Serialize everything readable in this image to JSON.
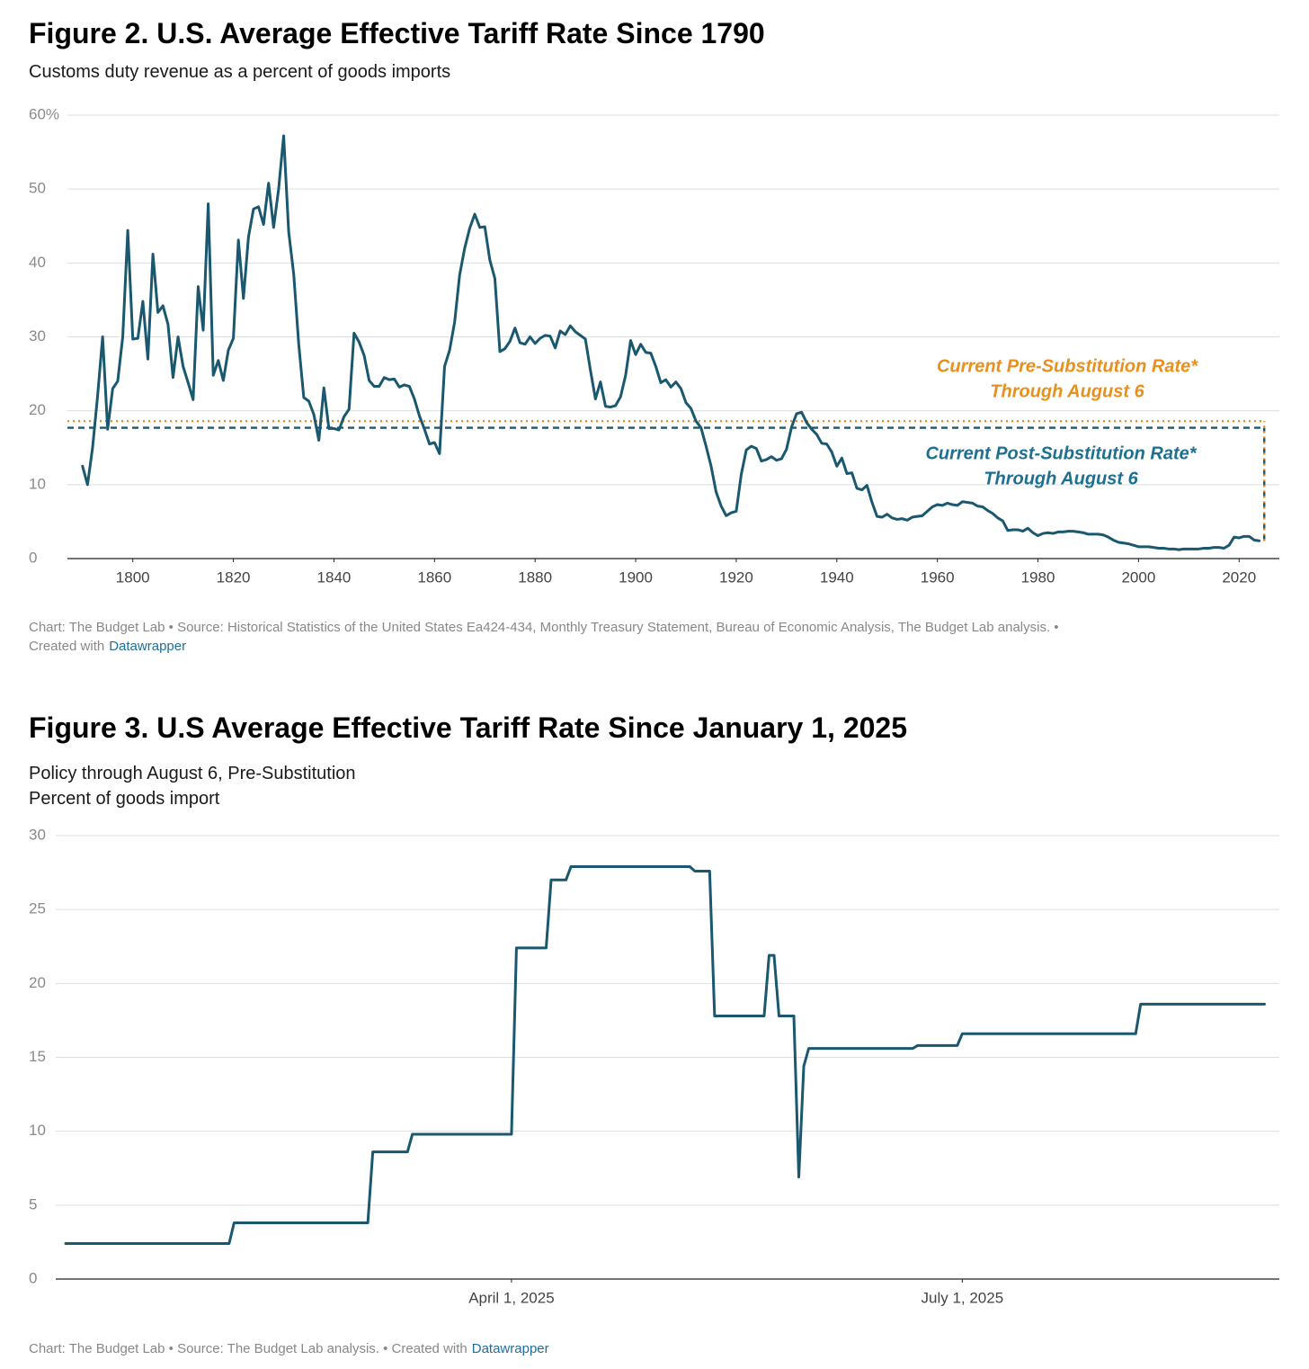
{
  "chart_data": [
    {
      "type": "line",
      "title": "Figure 2. U.S. Average Effective Tariff Rate Since 1790",
      "subtitle": [
        "Customs duty revenue as a percent of goods imports"
      ],
      "x": [
        1790,
        1791,
        1792,
        1793,
        1794,
        1795,
        1796,
        1797,
        1798,
        1799,
        1800,
        1801,
        1802,
        1803,
        1804,
        1805,
        1806,
        1807,
        1808,
        1809,
        1810,
        1811,
        1812,
        1813,
        1814,
        1815,
        1816,
        1817,
        1818,
        1819,
        1820,
        1821,
        1822,
        1823,
        1824,
        1825,
        1826,
        1827,
        1828,
        1829,
        1830,
        1831,
        1832,
        1833,
        1834,
        1835,
        1836,
        1837,
        1838,
        1839,
        1840,
        1841,
        1842,
        1843,
        1844,
        1845,
        1846,
        1847,
        1848,
        1849,
        1850,
        1851,
        1852,
        1853,
        1854,
        1855,
        1856,
        1857,
        1858,
        1859,
        1860,
        1861,
        1862,
        1863,
        1864,
        1865,
        1866,
        1867,
        1868,
        1869,
        1870,
        1871,
        1872,
        1873,
        1874,
        1875,
        1876,
        1877,
        1878,
        1879,
        1880,
        1881,
        1882,
        1883,
        1884,
        1885,
        1886,
        1887,
        1888,
        1889,
        1890,
        1891,
        1892,
        1893,
        1894,
        1895,
        1896,
        1897,
        1898,
        1899,
        1900,
        1901,
        1902,
        1903,
        1904,
        1905,
        1906,
        1907,
        1908,
        1909,
        1910,
        1911,
        1912,
        1913,
        1914,
        1915,
        1916,
        1917,
        1918,
        1919,
        1920,
        1921,
        1922,
        1923,
        1924,
        1925,
        1926,
        1927,
        1928,
        1929,
        1930,
        1931,
        1932,
        1933,
        1934,
        1935,
        1936,
        1937,
        1938,
        1939,
        1940,
        1941,
        1942,
        1943,
        1944,
        1945,
        1946,
        1947,
        1948,
        1949,
        1950,
        1951,
        1952,
        1953,
        1954,
        1955,
        1956,
        1957,
        1958,
        1959,
        1960,
        1961,
        1962,
        1963,
        1964,
        1965,
        1966,
        1967,
        1968,
        1969,
        1970,
        1971,
        1972,
        1973,
        1974,
        1975,
        1976,
        1977,
        1978,
        1979,
        1980,
        1981,
        1982,
        1983,
        1984,
        1985,
        1986,
        1987,
        1988,
        1989,
        1990,
        1991,
        1992,
        1993,
        1994,
        1995,
        1996,
        1997,
        1998,
        1999,
        2000,
        2001,
        2002,
        2003,
        2004,
        2005,
        2006,
        2007,
        2008,
        2009,
        2010,
        2011,
        2012,
        2013,
        2014,
        2015,
        2016,
        2017,
        2018,
        2019,
        2020,
        2021,
        2022,
        2023,
        2024
      ],
      "values": [
        12.5,
        10,
        15,
        22,
        30,
        17.5,
        23,
        24,
        30,
        44.4,
        29.7,
        29.8,
        34.8,
        27,
        41.2,
        33.3,
        34.2,
        31.7,
        24.5,
        30,
        26,
        23.8,
        21.5,
        36.8,
        30.9,
        48,
        24.8,
        26.8,
        24.1,
        28.2,
        29.8,
        43.1,
        35.2,
        43.5,
        47.3,
        47.6,
        45.2,
        50.8,
        44.8,
        50,
        57.2,
        44.2,
        38.5,
        29,
        21.8,
        21.3,
        19.5,
        16,
        23.1,
        17.6,
        17.6,
        17.4,
        19.2,
        20.2,
        30.5,
        29.3,
        27.5,
        24.1,
        23.3,
        23.3,
        24.5,
        24.2,
        24.3,
        23.2,
        23.5,
        23.3,
        21.6,
        19.3,
        17.5,
        15.5,
        15.7,
        14.2,
        26,
        28.2,
        32,
        38.4,
        42,
        44.7,
        46.6,
        44.8,
        44.9,
        40.4,
        37.9,
        28,
        28.4,
        29.4,
        31.2,
        29.2,
        29,
        30,
        29.1,
        29.8,
        30.2,
        30.1,
        28.5,
        30.8,
        30.3,
        31.5,
        30.7,
        30.2,
        29.7,
        25.5,
        21.6,
        23.9,
        20.6,
        20.5,
        20.7,
        21.9,
        24.8,
        29.5,
        27.6,
        29,
        27.9,
        27.8,
        26,
        23.8,
        24.2,
        23.2,
        23.9,
        23,
        21.1,
        20.3,
        18.6,
        17.7,
        15.2,
        12.5,
        9,
        7.1,
        5.8,
        6.2,
        6.4,
        11.4,
        14.7,
        15.2,
        14.9,
        13.2,
        13.4,
        13.8,
        13.3,
        13.5,
        14.8,
        17.8,
        19.6,
        19.8,
        18.4,
        17.5,
        16.8,
        15.6,
        15.5,
        14.4,
        12.5,
        13.6,
        11.5,
        11.6,
        9.5,
        9.3,
        9.9,
        7.6,
        5.7,
        5.6,
        6,
        5.5,
        5.3,
        5.4,
        5.2,
        5.6,
        5.7,
        5.8,
        6.4,
        7,
        7.3,
        7.2,
        7.5,
        7.3,
        7.2,
        7.7,
        7.6,
        7.5,
        7.1,
        7,
        6.5,
        6.1,
        5.5,
        5.1,
        3.8,
        3.9,
        3.9,
        3.7,
        4.1,
        3.5,
        3.1,
        3.4,
        3.5,
        3.4,
        3.6,
        3.6,
        3.7,
        3.7,
        3.6,
        3.5,
        3.3,
        3.3,
        3.3,
        3.2,
        2.9,
        2.5,
        2.2,
        2.1,
        2,
        1.8,
        1.6,
        1.6,
        1.6,
        1.5,
        1.4,
        1.4,
        1.3,
        1.3,
        1.2,
        1.3,
        1.3,
        1.3,
        1.3,
        1.4,
        1.4,
        1.5,
        1.5,
        1.4,
        1.8,
        2.9,
        2.8,
        3,
        3,
        2.5,
        2.4
      ],
      "color": "#1a5870",
      "xlim": [
        1787,
        2028
      ],
      "xticks": [
        1800,
        1820,
        1840,
        1860,
        1880,
        1900,
        1920,
        1940,
        1960,
        1980,
        2000,
        2020
      ],
      "ylim": [
        0,
        60
      ],
      "yticks": [
        0,
        10,
        20,
        30,
        40,
        50,
        {
          "value": 60,
          "label": "60%"
        }
      ],
      "grid": true,
      "reference_lines": [
        {
          "value": 18.6,
          "x_end": 2025,
          "color": "#e8901c",
          "style": "dotted",
          "label": [
            "Current Pre-Substitution Rate*",
            "Through August 6"
          ]
        },
        {
          "value": 17.7,
          "x_end": 2025,
          "color": "#1a5870",
          "label_color": "#1d7091",
          "style": "dashed",
          "label": [
            "Current Post-Substitution Rate*",
            "Through August 6"
          ]
        }
      ],
      "source": [
        "Chart: The Budget Lab • Source: Historical Statistics of the United States Ea424-434, Monthly Treasury Statement, Bureau of Economic Analysis, The Budget Lab analysis. •",
        "Created with"
      ],
      "credit": "Datawrapper"
    },
    {
      "type": "line",
      "title": "Figure 3. U.S Average Effective Tariff Rate Since January 1, 2025",
      "subtitle": [
        "Policy through August 6, Pre-Substitution",
        "Percent of goods import"
      ],
      "x": [
        "2025-01-01",
        "2025-02-03",
        "2025-02-04",
        "2025-03-03",
        "2025-03-04",
        "2025-03-11",
        "2025-03-12",
        "2025-04-01",
        "2025-04-02",
        "2025-04-08",
        "2025-04-09",
        "2025-04-12",
        "2025-04-13",
        "2025-05-07",
        "2025-05-08",
        "2025-05-11",
        "2025-05-12",
        "2025-05-22",
        "2025-05-23",
        "2025-05-24",
        "2025-05-25",
        "2025-05-28",
        "2025-05-29",
        "2025-05-30",
        "2025-05-31",
        "2025-06-21",
        "2025-06-22",
        "2025-06-30",
        "2025-07-01",
        "2025-08-05",
        "2025-08-06",
        "2025-08-31"
      ],
      "values": [
        2.4,
        2.4,
        3.8,
        3.8,
        8.6,
        8.6,
        9.8,
        9.8,
        22.4,
        22.4,
        27,
        27,
        27.9,
        27.9,
        27.6,
        27.6,
        17.8,
        17.8,
        21.9,
        21.9,
        17.8,
        17.8,
        6.9,
        14.4,
        15.6,
        15.6,
        15.8,
        15.8,
        16.6,
        16.6,
        18.6,
        18.6
      ],
      "color": "#1a5870",
      "xlim": [
        "2024-12-30",
        "2025-09-03"
      ],
      "xticks": [
        {
          "value": "2025-04-01",
          "label": "April 1, 2025"
        },
        {
          "value": "2025-07-01",
          "label": "July 1, 2025"
        }
      ],
      "ylim": [
        0,
        30
      ],
      "yticks": [
        0,
        5,
        10,
        15,
        20,
        25,
        30
      ],
      "grid": true,
      "source": [
        "Chart: The Budget Lab • Source: The Budget Lab analysis. • Created with"
      ],
      "credit": "Datawrapper"
    }
  ]
}
